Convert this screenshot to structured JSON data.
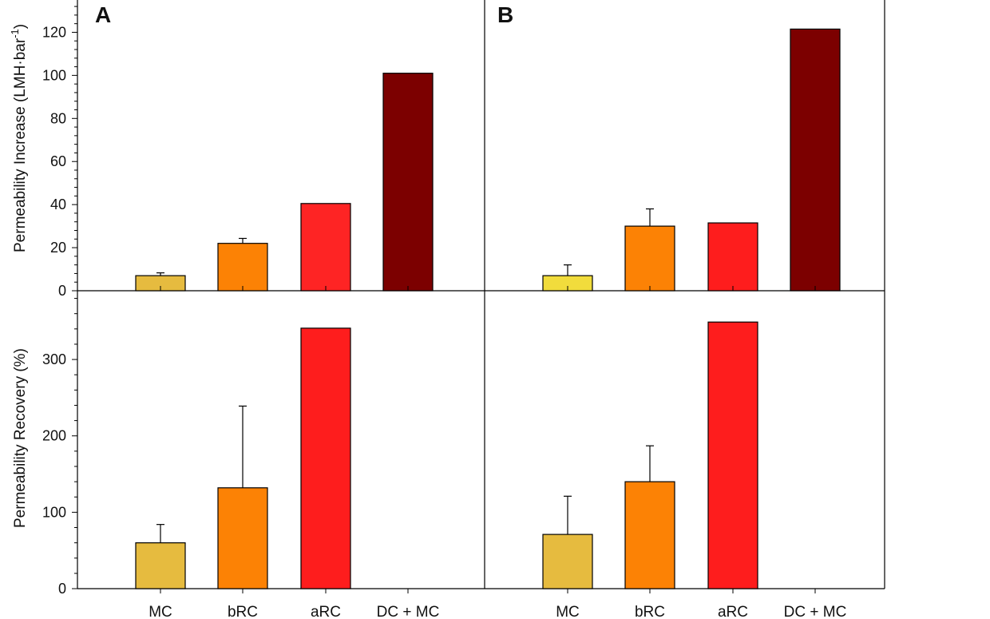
{
  "chart_data": [
    {
      "panel": "A",
      "type": "bar",
      "ylabel": "Permeability Increase (LMH·bar⁻¹)",
      "ylabel_main": "Permeability Increase (LMH·bar",
      "ylabel_sup": "-1",
      "ylabel_close": ")",
      "ylim": [
        0,
        135
      ],
      "yticks": [
        0,
        20,
        40,
        60,
        80,
        100,
        120
      ],
      "categories": [
        "MC",
        "bRC",
        "aRC",
        "DC + MC"
      ],
      "values": [
        7,
        22,
        40.5,
        101
      ],
      "errors": [
        1.3,
        2.3,
        null,
        null
      ],
      "colors": [
        "#e6bb3f",
        "#fc8205",
        "#fe2424",
        "#7c0000"
      ]
    },
    {
      "panel": "B",
      "type": "bar",
      "ylim": [
        0,
        135
      ],
      "categories": [
        "MC",
        "bRC",
        "aRC",
        "DC + MC"
      ],
      "values": [
        7,
        30,
        31.5,
        121.5
      ],
      "errors": [
        5,
        8,
        null,
        null
      ],
      "colors": [
        "#f1dc3c",
        "#fc8205",
        "#fe1d1d",
        "#7c0000"
      ]
    },
    {
      "panel": "A",
      "type": "bar",
      "ylabel": "Permeability Recovery (%)",
      "ylim": [
        0,
        390
      ],
      "yticks": [
        0,
        100,
        200,
        300
      ],
      "categories": [
        "MC",
        "bRC",
        "aRC",
        "DC + MC"
      ],
      "values": [
        60,
        132,
        341,
        null
      ],
      "errors": [
        24,
        107,
        null,
        null
      ],
      "colors": [
        "#e6bb3f",
        "#fc8205",
        "#fe1d1d",
        "#7c0000"
      ]
    },
    {
      "panel": "B",
      "type": "bar",
      "ylim": [
        0,
        390
      ],
      "categories": [
        "MC",
        "bRC",
        "aRC",
        "DC + MC"
      ],
      "values": [
        71,
        140,
        349,
        null
      ],
      "errors": [
        50,
        47,
        null,
        null
      ],
      "colors": [
        "#e6bb3f",
        "#fc8205",
        "#fe1d1d",
        "#7c0000"
      ]
    }
  ],
  "panel_labels": [
    "A",
    "B"
  ]
}
